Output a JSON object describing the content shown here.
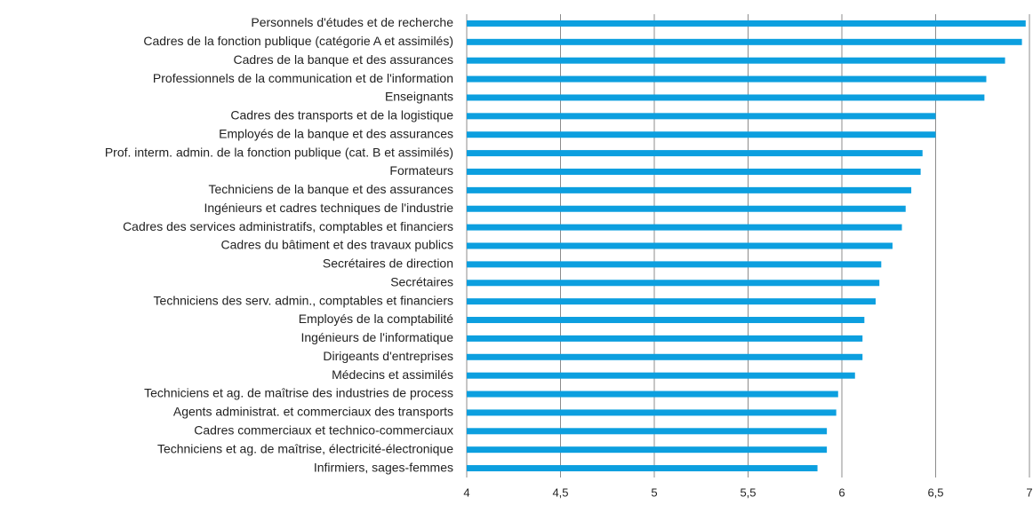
{
  "chart_data": {
    "type": "hbar",
    "categories": [
      "Personnels d'études et de recherche",
      "Cadres de la fonction publique (catégorie A et assimilés)",
      "Cadres de la banque et des assurances",
      "Professionnels de la communication et de l'information",
      "Enseignants",
      "Cadres des transports et de la logistique",
      "Employés de la banque et des assurances",
      "Prof. interm. admin. de la fonction publique (cat. B et assimilés)",
      "Formateurs",
      "Techniciens de la banque et des assurances",
      "Ingénieurs et cadres techniques de l'industrie",
      "Cadres des services administratifs, comptables et financiers",
      "Cadres du bâtiment et des travaux publics",
      "Secrétaires de direction",
      "Secrétaires",
      "Techniciens des serv. admin., comptables et financiers",
      "Employés de la comptabilité",
      "Ingénieurs de l'informatique",
      "Dirigeants d'entreprises",
      "Médecins et assimilés",
      "Techniciens et ag. de maîtrise des industries de process",
      "Agents administrat. et commerciaux des transports",
      "Cadres commerciaux et technico-commerciaux",
      "Techniciens et ag. de maîtrise, électricité-électronique",
      "Infirmiers, sages-femmes"
    ],
    "values": [
      6.98,
      6.96,
      6.87,
      6.77,
      6.76,
      6.5,
      6.5,
      6.43,
      6.42,
      6.37,
      6.34,
      6.32,
      6.27,
      6.21,
      6.2,
      6.18,
      6.12,
      6.11,
      6.11,
      6.07,
      5.98,
      5.97,
      5.92,
      5.92,
      5.87
    ],
    "color": "#0c9fdf",
    "xlim": [
      4,
      7
    ],
    "xticks": [
      4,
      {
        "value": 4.5,
        "label": "4,5"
      },
      5,
      {
        "value": 5.5,
        "label": "5,5"
      },
      6,
      {
        "value": 6.5,
        "label": "6,5"
      },
      7
    ],
    "grid": true
  }
}
